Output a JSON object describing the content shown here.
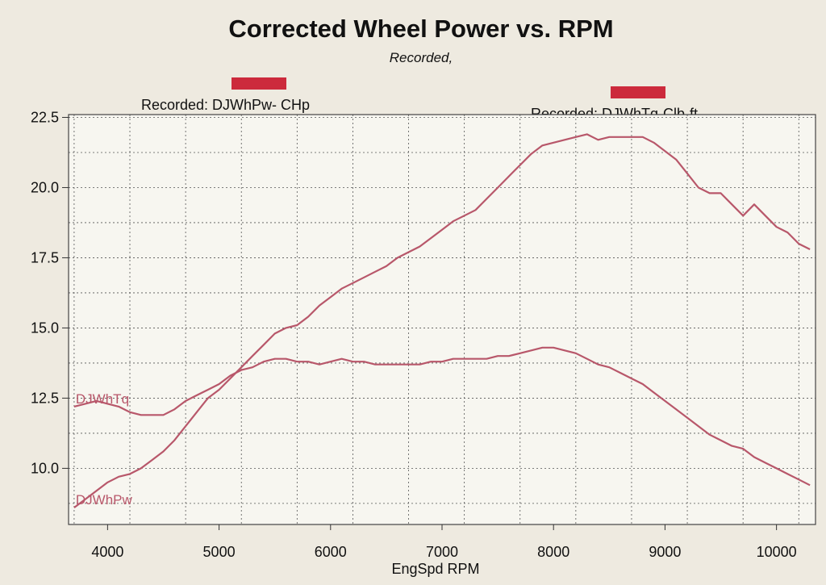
{
  "colors": {
    "background": "#eeeae0",
    "plot_background": "#f7f6f0",
    "grid": "#555555",
    "series": "#b8576a",
    "legend_swatch": "#cc2a3c"
  },
  "chart_data": {
    "type": "line",
    "title": "Corrected Wheel Power vs. RPM",
    "subtitle": "Recorded,",
    "xlabel": "EngSpd  RPM",
    "ylabel": "",
    "xlim": [
      3650,
      10350
    ],
    "ylim": [
      8.0,
      22.6
    ],
    "x_ticks": [
      4000,
      5000,
      6000,
      7000,
      8000,
      9000,
      10000
    ],
    "x_tick_labels": [
      "4000",
      "5000",
      "6000",
      "7000",
      "8000",
      "9000",
      "10000"
    ],
    "y_ticks": [
      10.0,
      12.5,
      15.0,
      17.5,
      20.0,
      22.5
    ],
    "y_tick_labels": [
      "10.0",
      "12.5",
      "15.0",
      "17.5",
      "20.0",
      "22.5"
    ],
    "grid": true,
    "legend": [
      {
        "label": "Recorded: DJWhPw- CHp",
        "position": "top-left"
      },
      {
        "label": "Recorded: DJWhTq-Clb-ft",
        "position": "top-right"
      }
    ],
    "series": [
      {
        "name": "DJWhPw",
        "x": [
          3700,
          3800,
          3900,
          4000,
          4100,
          4200,
          4300,
          4400,
          4500,
          4600,
          4700,
          4800,
          4900,
          5000,
          5100,
          5200,
          5300,
          5400,
          5500,
          5600,
          5700,
          5800,
          5900,
          6000,
          6100,
          6200,
          6300,
          6400,
          6500,
          6600,
          6700,
          6800,
          6900,
          7000,
          7100,
          7200,
          7300,
          7400,
          7500,
          7600,
          7700,
          7800,
          7900,
          8000,
          8100,
          8200,
          8300,
          8400,
          8500,
          8600,
          8700,
          8800,
          8900,
          9000,
          9100,
          9200,
          9300,
          9400,
          9500,
          9600,
          9700,
          9800,
          9900,
          10000,
          10100,
          10200,
          10300
        ],
        "values": [
          8.6,
          8.9,
          9.2,
          9.5,
          9.7,
          9.8,
          10.0,
          10.3,
          10.6,
          11.0,
          11.5,
          12.0,
          12.5,
          12.8,
          13.2,
          13.6,
          14.0,
          14.4,
          14.8,
          15.0,
          15.1,
          15.4,
          15.8,
          16.1,
          16.4,
          16.6,
          16.8,
          17.0,
          17.2,
          17.5,
          17.7,
          17.9,
          18.2,
          18.5,
          18.8,
          19.0,
          19.2,
          19.6,
          20.0,
          20.4,
          20.8,
          21.2,
          21.5,
          21.6,
          21.7,
          21.8,
          21.9,
          21.7,
          21.8,
          21.8,
          21.8,
          21.8,
          21.6,
          21.3,
          21.0,
          20.5,
          20.0,
          19.8,
          19.8,
          19.4,
          19.0,
          19.4,
          19.0,
          18.6,
          18.4,
          18.0,
          17.8
        ]
      },
      {
        "name": "DJWhTq",
        "x": [
          3700,
          3800,
          3900,
          4000,
          4100,
          4200,
          4300,
          4400,
          4500,
          4600,
          4700,
          4800,
          4900,
          5000,
          5100,
          5200,
          5300,
          5400,
          5500,
          5600,
          5700,
          5800,
          5900,
          6000,
          6100,
          6200,
          6300,
          6400,
          6500,
          6600,
          6700,
          6800,
          6900,
          7000,
          7100,
          7200,
          7300,
          7400,
          7500,
          7600,
          7700,
          7800,
          7900,
          8000,
          8100,
          8200,
          8300,
          8400,
          8500,
          8600,
          8700,
          8800,
          8900,
          9000,
          9100,
          9200,
          9300,
          9400,
          9500,
          9600,
          9700,
          9800,
          9900,
          10000,
          10100,
          10200,
          10300
        ],
        "values": [
          12.2,
          12.3,
          12.4,
          12.3,
          12.2,
          12.0,
          11.9,
          11.9,
          11.9,
          12.1,
          12.4,
          12.6,
          12.8,
          13.0,
          13.3,
          13.5,
          13.6,
          13.8,
          13.9,
          13.9,
          13.8,
          13.8,
          13.7,
          13.8,
          13.9,
          13.8,
          13.8,
          13.7,
          13.7,
          13.7,
          13.7,
          13.7,
          13.8,
          13.8,
          13.9,
          13.9,
          13.9,
          13.9,
          14.0,
          14.0,
          14.1,
          14.2,
          14.3,
          14.3,
          14.2,
          14.1,
          13.9,
          13.7,
          13.6,
          13.4,
          13.2,
          13.0,
          12.7,
          12.4,
          12.1,
          11.8,
          11.5,
          11.2,
          11.0,
          10.8,
          10.7,
          10.4,
          10.2,
          10.0,
          9.8,
          9.6,
          9.4
        ]
      }
    ]
  }
}
